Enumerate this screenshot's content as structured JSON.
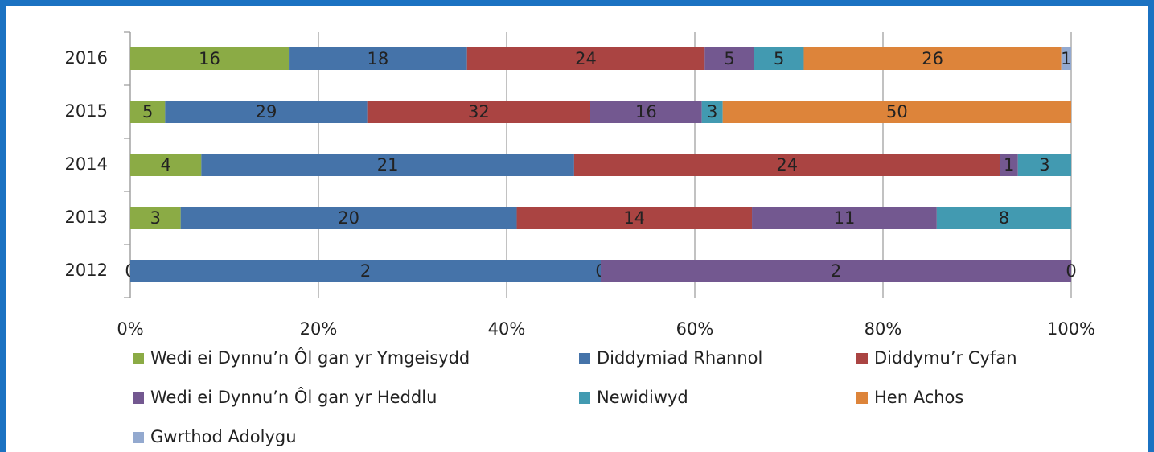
{
  "chart_data": {
    "type": "stacked_bar_100_horizontal",
    "categories": [
      "2016",
      "2015",
      "2014",
      "2013",
      "2012"
    ],
    "series": [
      {
        "name": "Wedi ei Dynnu’n Ôl gan yr Ymgeisydd",
        "color": "#8bab45",
        "values": [
          16,
          5,
          4,
          3,
          0
        ]
      },
      {
        "name": "Diddymiad Rhannol",
        "color": "#4573a9",
        "values": [
          18,
          29,
          21,
          20,
          2
        ]
      },
      {
        "name": "Diddymu’r Cyfan",
        "color": "#aa4442",
        "values": [
          24,
          32,
          24,
          14,
          0
        ]
      },
      {
        "name": "Wedi ei Dynnu’n Ôl gan yr Heddlu",
        "color": "#735890",
        "values": [
          5,
          16,
          1,
          11,
          2
        ]
      },
      {
        "name": "Newidiwyd",
        "color": "#429ab1",
        "values": [
          5,
          3,
          3,
          8,
          0
        ]
      },
      {
        "name": "Hen Achos",
        "color": "#dd843a",
        "values": [
          26,
          50,
          null,
          null,
          null
        ]
      },
      {
        "name": "Gwrthod Adolygu",
        "color": "#93a9cf",
        "values": [
          1,
          null,
          null,
          null,
          null
        ]
      }
    ],
    "xlim": [
      0,
      100
    ],
    "xticks": [
      {
        "value": 0,
        "label": "0%"
      },
      {
        "value": 20,
        "label": "20%"
      },
      {
        "value": 40,
        "label": "40%"
      },
      {
        "value": 60,
        "label": "60%"
      },
      {
        "value": 80,
        "label": "80%"
      },
      {
        "value": 100,
        "label": "100%"
      }
    ],
    "grid": true
  }
}
